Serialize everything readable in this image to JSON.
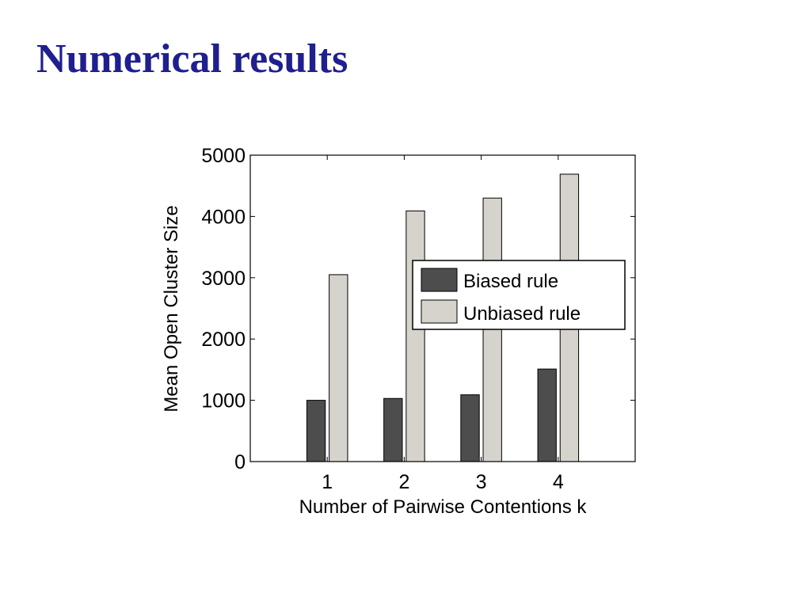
{
  "slide": {
    "title": "Numerical results"
  },
  "chart_data": {
    "type": "bar",
    "title": "",
    "xlabel": "Number of Pairwise Contentions k",
    "ylabel": "Mean Open Cluster Size",
    "categories": [
      "1",
      "2",
      "3",
      "4"
    ],
    "xlim": [
      0.0,
      5.0
    ],
    "ylim": [
      0,
      5000
    ],
    "yticks": [
      0,
      1000,
      2000,
      3000,
      4000,
      5000
    ],
    "ytick_labels": [
      "0",
      "1000",
      "2000",
      "3000",
      "4000",
      "5000"
    ],
    "grid": false,
    "legend_position": "middle-right",
    "series": [
      {
        "name": "Biased rule",
        "values": [
          1000,
          1030,
          1090,
          1510
        ],
        "color": "#4d4d4d"
      },
      {
        "name": "Unbiased rule",
        "values": [
          3050,
          4090,
          4300,
          4690
        ],
        "color": "#d6d3cc"
      }
    ]
  }
}
